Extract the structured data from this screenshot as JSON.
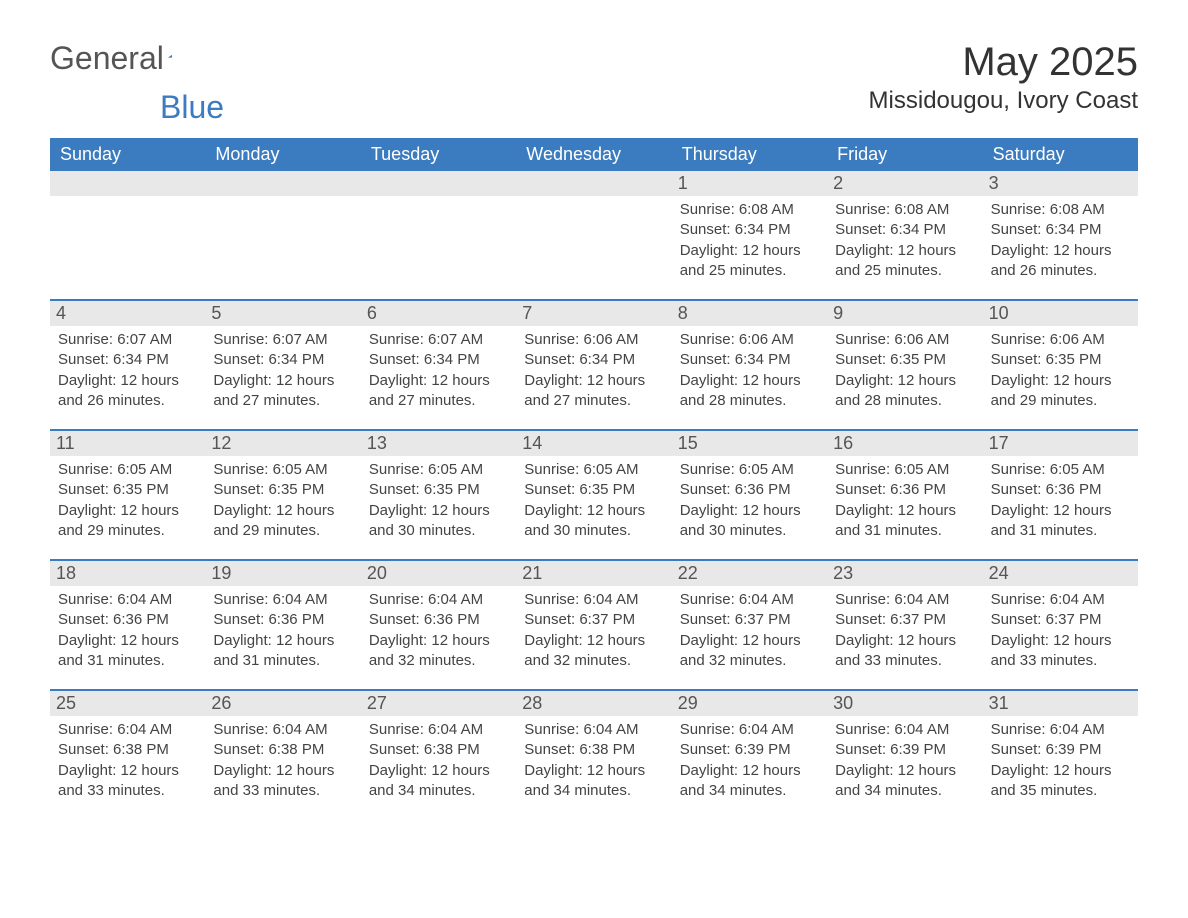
{
  "logo": {
    "general": "General",
    "blue": "Blue"
  },
  "title": {
    "month": "May 2025",
    "location": "Missidougou, Ivory Coast"
  },
  "colors": {
    "header_bg": "#3b7bbf",
    "header_text": "#ffffff",
    "daynum_bg": "#e8e8e8",
    "border": "#3b7bbf",
    "body_text": "#444444"
  },
  "weekdays": [
    "Sunday",
    "Monday",
    "Tuesday",
    "Wednesday",
    "Thursday",
    "Friday",
    "Saturday"
  ],
  "labels": {
    "sunrise": "Sunrise: ",
    "sunset": "Sunset: ",
    "daylight": "Daylight: "
  },
  "weeks": [
    [
      null,
      null,
      null,
      null,
      {
        "d": "1",
        "sr": "6:08 AM",
        "ss": "6:34 PM",
        "dl": "12 hours and 25 minutes."
      },
      {
        "d": "2",
        "sr": "6:08 AM",
        "ss": "6:34 PM",
        "dl": "12 hours and 25 minutes."
      },
      {
        "d": "3",
        "sr": "6:08 AM",
        "ss": "6:34 PM",
        "dl": "12 hours and 26 minutes."
      }
    ],
    [
      {
        "d": "4",
        "sr": "6:07 AM",
        "ss": "6:34 PM",
        "dl": "12 hours and 26 minutes."
      },
      {
        "d": "5",
        "sr": "6:07 AM",
        "ss": "6:34 PM",
        "dl": "12 hours and 27 minutes."
      },
      {
        "d": "6",
        "sr": "6:07 AM",
        "ss": "6:34 PM",
        "dl": "12 hours and 27 minutes."
      },
      {
        "d": "7",
        "sr": "6:06 AM",
        "ss": "6:34 PM",
        "dl": "12 hours and 27 minutes."
      },
      {
        "d": "8",
        "sr": "6:06 AM",
        "ss": "6:34 PM",
        "dl": "12 hours and 28 minutes."
      },
      {
        "d": "9",
        "sr": "6:06 AM",
        "ss": "6:35 PM",
        "dl": "12 hours and 28 minutes."
      },
      {
        "d": "10",
        "sr": "6:06 AM",
        "ss": "6:35 PM",
        "dl": "12 hours and 29 minutes."
      }
    ],
    [
      {
        "d": "11",
        "sr": "6:05 AM",
        "ss": "6:35 PM",
        "dl": "12 hours and 29 minutes."
      },
      {
        "d": "12",
        "sr": "6:05 AM",
        "ss": "6:35 PM",
        "dl": "12 hours and 29 minutes."
      },
      {
        "d": "13",
        "sr": "6:05 AM",
        "ss": "6:35 PM",
        "dl": "12 hours and 30 minutes."
      },
      {
        "d": "14",
        "sr": "6:05 AM",
        "ss": "6:35 PM",
        "dl": "12 hours and 30 minutes."
      },
      {
        "d": "15",
        "sr": "6:05 AM",
        "ss": "6:36 PM",
        "dl": "12 hours and 30 minutes."
      },
      {
        "d": "16",
        "sr": "6:05 AM",
        "ss": "6:36 PM",
        "dl": "12 hours and 31 minutes."
      },
      {
        "d": "17",
        "sr": "6:05 AM",
        "ss": "6:36 PM",
        "dl": "12 hours and 31 minutes."
      }
    ],
    [
      {
        "d": "18",
        "sr": "6:04 AM",
        "ss": "6:36 PM",
        "dl": "12 hours and 31 minutes."
      },
      {
        "d": "19",
        "sr": "6:04 AM",
        "ss": "6:36 PM",
        "dl": "12 hours and 31 minutes."
      },
      {
        "d": "20",
        "sr": "6:04 AM",
        "ss": "6:36 PM",
        "dl": "12 hours and 32 minutes."
      },
      {
        "d": "21",
        "sr": "6:04 AM",
        "ss": "6:37 PM",
        "dl": "12 hours and 32 minutes."
      },
      {
        "d": "22",
        "sr": "6:04 AM",
        "ss": "6:37 PM",
        "dl": "12 hours and 32 minutes."
      },
      {
        "d": "23",
        "sr": "6:04 AM",
        "ss": "6:37 PM",
        "dl": "12 hours and 33 minutes."
      },
      {
        "d": "24",
        "sr": "6:04 AM",
        "ss": "6:37 PM",
        "dl": "12 hours and 33 minutes."
      }
    ],
    [
      {
        "d": "25",
        "sr": "6:04 AM",
        "ss": "6:38 PM",
        "dl": "12 hours and 33 minutes."
      },
      {
        "d": "26",
        "sr": "6:04 AM",
        "ss": "6:38 PM",
        "dl": "12 hours and 33 minutes."
      },
      {
        "d": "27",
        "sr": "6:04 AM",
        "ss": "6:38 PM",
        "dl": "12 hours and 34 minutes."
      },
      {
        "d": "28",
        "sr": "6:04 AM",
        "ss": "6:38 PM",
        "dl": "12 hours and 34 minutes."
      },
      {
        "d": "29",
        "sr": "6:04 AM",
        "ss": "6:39 PM",
        "dl": "12 hours and 34 minutes."
      },
      {
        "d": "30",
        "sr": "6:04 AM",
        "ss": "6:39 PM",
        "dl": "12 hours and 34 minutes."
      },
      {
        "d": "31",
        "sr": "6:04 AM",
        "ss": "6:39 PM",
        "dl": "12 hours and 35 minutes."
      }
    ]
  ]
}
